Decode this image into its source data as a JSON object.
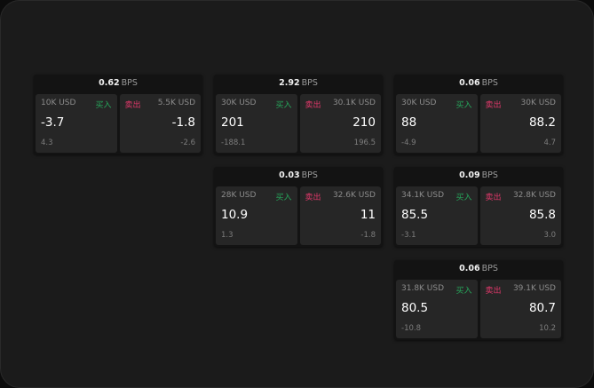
{
  "colors": {
    "buy": "#26a65b",
    "sell": "#e0386a",
    "background": "#1b1b1b",
    "box": "#262626"
  },
  "unit": "BPS",
  "buy_label": "买入",
  "sell_label": "卖出",
  "cards": [
    {
      "spread": "0.62",
      "buy": {
        "size": "10K USD",
        "price": "-3.7",
        "change": "4.3"
      },
      "sell": {
        "size": "5.5K USD",
        "price": "-1.8",
        "change": "-2.6"
      }
    },
    {
      "spread": "2.92",
      "buy": {
        "size": "30K USD",
        "price": "201",
        "change": "-188.1"
      },
      "sell": {
        "size": "30.1K USD",
        "price": "210",
        "change": "196.5"
      }
    },
    {
      "spread": "0.06",
      "buy": {
        "size": "30K USD",
        "price": "88",
        "change": "-4.9"
      },
      "sell": {
        "size": "30K USD",
        "price": "88.2",
        "change": "4.7"
      }
    },
    {
      "spread": "0.03",
      "buy": {
        "size": "28K USD",
        "price": "10.9",
        "change": "1.3"
      },
      "sell": {
        "size": "32.6K USD",
        "price": "11",
        "change": "-1.8"
      }
    },
    {
      "spread": "0.09",
      "buy": {
        "size": "34.1K USD",
        "price": "85.5",
        "change": "-3.1"
      },
      "sell": {
        "size": "32.8K USD",
        "price": "85.8",
        "change": "3.0"
      }
    },
    {
      "spread": "0.06",
      "buy": {
        "size": "31.8K USD",
        "price": "80.5",
        "change": "-10.8"
      },
      "sell": {
        "size": "39.1K USD",
        "price": "80.7",
        "change": "10.2"
      }
    }
  ]
}
